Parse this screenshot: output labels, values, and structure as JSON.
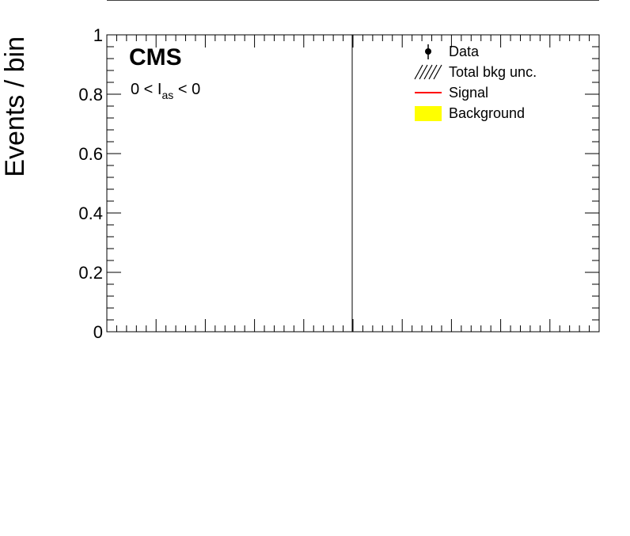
{
  "chart_data": {
    "type": "histogram",
    "title": "",
    "experiment_label": "CMS",
    "selection_label": {
      "prefix": "0 < I",
      "subscript": "as",
      "suffix": " < 0"
    },
    "ylabel": "Events / bin",
    "xlabel": "",
    "ylim": [
      0,
      1
    ],
    "y_ticks": [
      "0",
      "0.2",
      "0.4",
      "0.6",
      "0.8",
      "1"
    ],
    "y_tick_values": [
      0,
      0.2,
      0.4,
      0.6,
      0.8,
      1
    ],
    "legend": {
      "position": "top-right",
      "entries": [
        {
          "label": "Data",
          "style": "marker-errorbar",
          "color": "#000000"
        },
        {
          "label": "Total bkg unc.",
          "style": "hatch",
          "color": "#000000"
        },
        {
          "label": "Signal",
          "style": "line",
          "color": "#ff0000"
        },
        {
          "label": "Background",
          "style": "fill",
          "color": "#ffff00"
        }
      ]
    },
    "series": [],
    "grid": false
  }
}
